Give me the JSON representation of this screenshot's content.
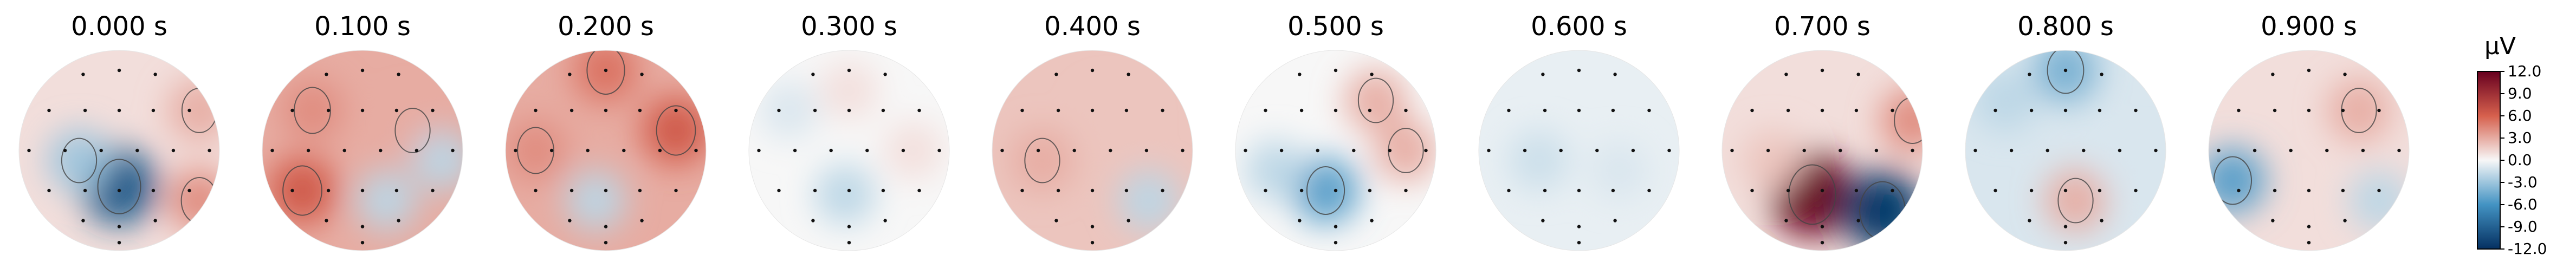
{
  "chart_data": {
    "type": "heatmap",
    "colorbar": {
      "unit": "µV",
      "ticks": [
        "12.0",
        "9.0",
        "6.0",
        "3.0",
        "0.0",
        "-3.0",
        "-6.0",
        "-9.0",
        "-12.0"
      ],
      "range": [
        -12,
        12
      ],
      "colors": {
        "max": "#67001f",
        "pos": "#d6604d",
        "zero": "#f7f7f7",
        "neg": "#4393c3",
        "min": "#053061"
      }
    },
    "maps": [
      {
        "time": "0.000 s",
        "background": 1,
        "sources": [
          {
            "x": 0.5,
            "y": 0.68,
            "w": -9
          },
          {
            "x": 0.3,
            "y": 0.55,
            "w": -3
          },
          {
            "x": 0.9,
            "y": 0.75,
            "w": 4
          },
          {
            "x": 0.9,
            "y": 0.3,
            "w": 3
          }
        ]
      },
      {
        "time": "0.100 s",
        "background": 3,
        "sources": [
          {
            "x": 0.2,
            "y": 0.7,
            "w": 6
          },
          {
            "x": 0.25,
            "y": 0.3,
            "w": 4
          },
          {
            "x": 0.75,
            "y": 0.4,
            "w": 3
          },
          {
            "x": 0.62,
            "y": 0.75,
            "w": -2
          },
          {
            "x": 0.9,
            "y": 0.55,
            "w": -2
          }
        ]
      },
      {
        "time": "0.200 s",
        "background": 3,
        "sources": [
          {
            "x": 0.5,
            "y": 0.1,
            "w": 5
          },
          {
            "x": 0.85,
            "y": 0.4,
            "w": 6
          },
          {
            "x": 0.15,
            "y": 0.5,
            "w": 4
          },
          {
            "x": 0.45,
            "y": 0.75,
            "w": -2
          }
        ]
      },
      {
        "time": "0.300 s",
        "background": 0,
        "sources": [
          {
            "x": 0.2,
            "y": 0.3,
            "w": -1
          },
          {
            "x": 0.5,
            "y": 0.2,
            "w": 1
          },
          {
            "x": 0.48,
            "y": 0.72,
            "w": -2
          },
          {
            "x": 0.82,
            "y": 0.5,
            "w": 1
          }
        ]
      },
      {
        "time": "0.400 s",
        "background": 2,
        "sources": [
          {
            "x": 0.25,
            "y": 0.55,
            "w": 3
          },
          {
            "x": 0.6,
            "y": 0.35,
            "w": 2
          },
          {
            "x": 0.78,
            "y": 0.75,
            "w": -2
          }
        ]
      },
      {
        "time": "0.500 s",
        "background": 0,
        "sources": [
          {
            "x": 0.45,
            "y": 0.7,
            "w": -5
          },
          {
            "x": 0.2,
            "y": 0.6,
            "w": -2
          },
          {
            "x": 0.7,
            "y": 0.25,
            "w": 3
          },
          {
            "x": 0.85,
            "y": 0.5,
            "w": 3
          }
        ]
      },
      {
        "time": "0.600 s",
        "background": -0.5,
        "sources": [
          {
            "x": 0.3,
            "y": 0.55,
            "w": -1.5
          },
          {
            "x": 0.7,
            "y": 0.6,
            "w": -1
          }
        ]
      },
      {
        "time": "0.700 s",
        "background": 1,
        "sources": [
          {
            "x": 0.45,
            "y": 0.72,
            "w": 12
          },
          {
            "x": 0.8,
            "y": 0.8,
            "w": -11
          },
          {
            "x": 0.95,
            "y": 0.35,
            "w": 4
          },
          {
            "x": 0.25,
            "y": 0.55,
            "w": 2
          }
        ]
      },
      {
        "time": "0.800 s",
        "background": -1,
        "sources": [
          {
            "x": 0.5,
            "y": 0.1,
            "w": -4
          },
          {
            "x": 0.2,
            "y": 0.25,
            "w": -2
          },
          {
            "x": 0.55,
            "y": 0.75,
            "w": 3
          },
          {
            "x": 0.85,
            "y": 0.6,
            "w": -1
          }
        ]
      },
      {
        "time": "0.900 s",
        "background": 1,
        "sources": [
          {
            "x": 0.12,
            "y": 0.65,
            "w": -5
          },
          {
            "x": 0.75,
            "y": 0.3,
            "w": 3
          },
          {
            "x": 0.85,
            "y": 0.75,
            "w": -2
          }
        ]
      }
    ],
    "sensors": [
      [
        0.32,
        0.12
      ],
      [
        0.5,
        0.1
      ],
      [
        0.68,
        0.12
      ],
      [
        0.15,
        0.3
      ],
      [
        0.33,
        0.3
      ],
      [
        0.5,
        0.3
      ],
      [
        0.67,
        0.3
      ],
      [
        0.85,
        0.3
      ],
      [
        0.05,
        0.5
      ],
      [
        0.23,
        0.5
      ],
      [
        0.41,
        0.5
      ],
      [
        0.59,
        0.5
      ],
      [
        0.77,
        0.5
      ],
      [
        0.95,
        0.5
      ],
      [
        0.15,
        0.7
      ],
      [
        0.33,
        0.7
      ],
      [
        0.5,
        0.7
      ],
      [
        0.67,
        0.7
      ],
      [
        0.85,
        0.7
      ],
      [
        0.32,
        0.85
      ],
      [
        0.5,
        0.88
      ],
      [
        0.68,
        0.85
      ],
      [
        0.5,
        0.96
      ]
    ]
  }
}
